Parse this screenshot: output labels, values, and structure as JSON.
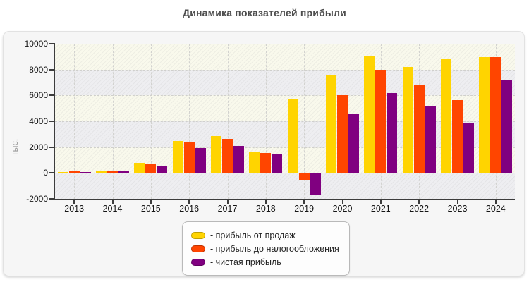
{
  "title": "Динамика показателей прибыли",
  "y_axis": {
    "label": "тыс."
  },
  "legend": {
    "items": [
      {
        "label": "- прибыль от продаж",
        "color": "#ffd400"
      },
      {
        "label": "- прибыль до налогообложения",
        "color": "#ff4500"
      },
      {
        "label": "- чистая прибыль",
        "color": "#800080"
      }
    ]
  },
  "chart_data": {
    "type": "bar",
    "title": "Динамика показателей прибыли",
    "xlabel": "",
    "ylabel": "тыс.",
    "ylim": [
      -2000,
      10000
    ],
    "ytick_step": 2000,
    "grid": true,
    "legend_position": "bottom",
    "background_style": "alternating hatched bands",
    "categories": [
      "2013",
      "2014",
      "2015",
      "2016",
      "2017",
      "2018",
      "2019",
      "2020",
      "2021",
      "2022",
      "2023",
      "2024"
    ],
    "series": [
      {
        "name": "прибыль от продаж",
        "color": "#ffd400",
        "values": [
          100,
          200,
          780,
          2460,
          2850,
          1620,
          5670,
          7600,
          9080,
          8180,
          8870,
          8980
        ]
      },
      {
        "name": "прибыль до налогообложения",
        "color": "#ff4500",
        "values": [
          130,
          120,
          700,
          2390,
          2640,
          1550,
          -530,
          6010,
          7960,
          6830,
          5650,
          8980
        ]
      },
      {
        "name": "чистая прибыль",
        "color": "#800080",
        "values": [
          100,
          120,
          590,
          1910,
          2110,
          1480,
          -1660,
          4550,
          6200,
          5190,
          3830,
          7150
        ]
      }
    ]
  }
}
